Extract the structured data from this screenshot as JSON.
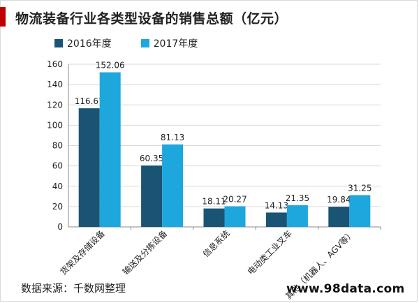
{
  "header": {
    "title": "物流装备行业各类型设备的销售总额（亿元）"
  },
  "footer": {
    "source": "数据来源：千数网整理",
    "watermark": "www.98data.com"
  },
  "colors": {
    "accent": "#c00000",
    "series_2016": "#1a5475",
    "series_2017": "#1ea7dd",
    "grid": "#d9d9d9",
    "axis": "#888888",
    "text": "#222222"
  },
  "chart_data": {
    "type": "bar",
    "title": "物流装备行业各类型设备的销售总额（亿元）",
    "categories": [
      "货架及存储设备",
      "输送及分拣设备",
      "信息系统",
      "电动类工业叉车",
      "其他（机器人、AGV等）"
    ],
    "series": [
      {
        "name": "2016年度",
        "values": [
          116.67,
          60.35,
          18.11,
          14.13,
          19.84
        ]
      },
      {
        "name": "2017年度",
        "values": [
          152.06,
          81.13,
          20.27,
          21.35,
          31.25
        ]
      }
    ],
    "yticks": [
      0,
      20,
      40,
      60,
      80,
      100,
      120,
      140,
      160
    ],
    "ylim": [
      0,
      160
    ],
    "xlabel": "",
    "ylabel": "",
    "legend_position": "top-left",
    "grid": true
  }
}
